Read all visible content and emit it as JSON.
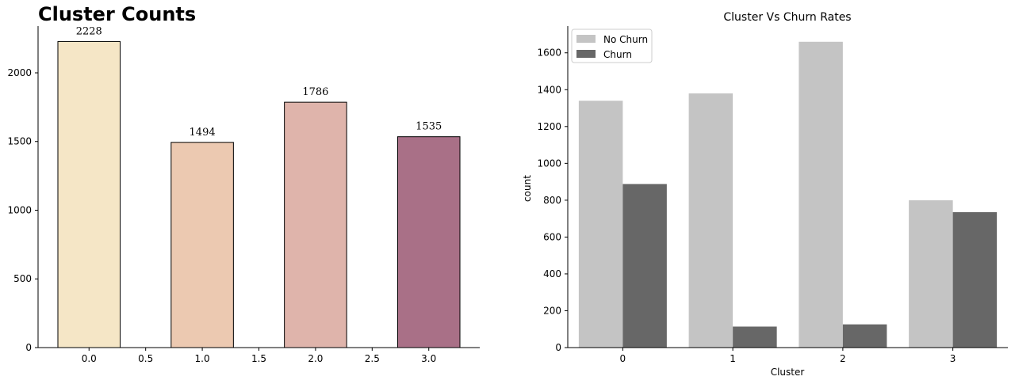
{
  "chart_data": [
    {
      "type": "bar",
      "title": "Cluster Counts",
      "x": [
        0.0,
        1.0,
        2.0,
        3.0
      ],
      "values": [
        2228,
        1494,
        1786,
        1535
      ],
      "data_labels": [
        "2228",
        "1494",
        "1786",
        "1535"
      ],
      "colors": [
        "#f5e6c6",
        "#ecc9b1",
        "#dfb4ab",
        "#a97087"
      ],
      "xlim": [
        -0.45,
        3.45
      ],
      "ylim": [
        0,
        2340
      ],
      "xticks": [
        0.0,
        0.5,
        1.0,
        1.5,
        2.0,
        2.5,
        3.0
      ],
      "xtick_labels": [
        "0.0",
        "0.5",
        "1.0",
        "1.5",
        "2.0",
        "2.5",
        "3.0"
      ],
      "yticks": [
        0,
        500,
        1000,
        1500,
        2000
      ],
      "ytick_labels": [
        "0",
        "500",
        "1000",
        "1500",
        "2000"
      ],
      "grid": false
    },
    {
      "type": "bar",
      "title": "Cluster Vs Churn Rates",
      "xlabel": "Cluster",
      "ylabel": "count",
      "categories": [
        "0",
        "1",
        "2",
        "3"
      ],
      "series": [
        {
          "name": "No Churn",
          "values": [
            1340,
            1380,
            1660,
            800
          ],
          "color": "#c4c4c4"
        },
        {
          "name": "Churn",
          "values": [
            888,
            114,
            126,
            735
          ],
          "color": "#676767"
        }
      ],
      "ylim": [
        0,
        1745
      ],
      "yticks": [
        0,
        200,
        400,
        600,
        800,
        1000,
        1200,
        1400,
        1600
      ],
      "ytick_labels": [
        "0",
        "200",
        "400",
        "600",
        "800",
        "1000",
        "1200",
        "1400",
        "1600"
      ],
      "legend": "upper-left",
      "grid": false
    }
  ]
}
